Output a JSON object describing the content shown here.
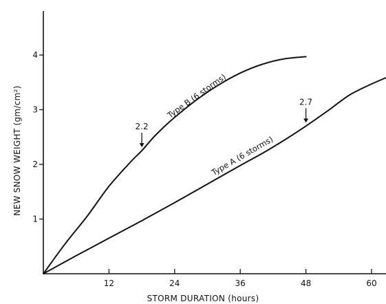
{
  "chart_data": {
    "type": "line",
    "xlabel": "STORM DURATION (hours)",
    "ylabel": "NEW SNOW WEIGHT (gm/cm²)",
    "xlim": [
      0,
      63
    ],
    "ylim": [
      0,
      4.7
    ],
    "xticks": [
      "12",
      "24",
      "36",
      "48",
      "60"
    ],
    "xtick_values": [
      12,
      24,
      36,
      48,
      60
    ],
    "yticks": [
      "1",
      "2",
      "3",
      "4"
    ],
    "ytick_values": [
      1,
      2,
      3,
      4
    ],
    "grid": false,
    "series": [
      {
        "name": "Type B (6 storms)",
        "x": [
          0,
          4,
          8,
          12,
          16,
          18,
          20,
          22,
          24,
          28,
          32,
          36,
          40,
          44,
          48
        ],
        "y": [
          0,
          0.55,
          1.05,
          1.6,
          2.05,
          2.25,
          2.48,
          2.68,
          2.86,
          3.18,
          3.45,
          3.67,
          3.83,
          3.93,
          3.97
        ]
      },
      {
        "name": "Type A (6 storms)",
        "x": [
          0,
          6,
          12,
          18,
          24,
          30,
          36,
          40,
          44,
          48,
          52,
          56,
          60,
          63
        ],
        "y": [
          0,
          0.33,
          0.65,
          0.97,
          1.3,
          1.64,
          1.98,
          2.2,
          2.44,
          2.7,
          2.98,
          3.27,
          3.47,
          3.6
        ]
      }
    ],
    "annotations": [
      {
        "text": "2.2",
        "x": 18,
        "y": 2.25,
        "series": "Type B (6 storms)"
      },
      {
        "text": "2.7",
        "x": 48,
        "y": 2.7,
        "series": "Type A (6 storms)"
      }
    ]
  }
}
